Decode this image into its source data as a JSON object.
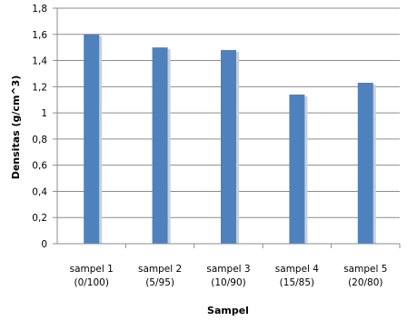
{
  "chart_data": {
    "type": "bar",
    "title": "",
    "xlabel": "Sampel",
    "ylabel": "Densitas (g/cm^3)",
    "categories": [
      [
        "sampel 1",
        "(0/100)"
      ],
      [
        "sampel 2",
        "(5/95)"
      ],
      [
        "sampel 3",
        "(10/90)"
      ],
      [
        "sampel 4",
        "(15/85)"
      ],
      [
        "sampel 5",
        "(20/80)"
      ]
    ],
    "values": [
      1.6,
      1.5,
      1.48,
      1.14,
      1.23
    ],
    "ylim": [
      0,
      1.8
    ],
    "yticks": [
      {
        "value": 0,
        "label": "0"
      },
      {
        "value": 0.2,
        "label": "0,2"
      },
      {
        "value": 0.4,
        "label": "0,4"
      },
      {
        "value": 0.6,
        "label": "0,6"
      },
      {
        "value": 0.8,
        "label": "0,8"
      },
      {
        "value": 1.0,
        "label": "1"
      },
      {
        "value": 1.2,
        "label": "1,2"
      },
      {
        "value": 1.4,
        "label": "1,4"
      },
      {
        "value": 1.6,
        "label": "1,6"
      },
      {
        "value": 1.8,
        "label": "1,8"
      }
    ],
    "grid": true,
    "legend": "none",
    "colors": {
      "bar": "#4f81bd",
      "bar_shadow": "#c8d0dc",
      "grid": "#8c8c8c",
      "axis": "#8c8c8c"
    }
  }
}
